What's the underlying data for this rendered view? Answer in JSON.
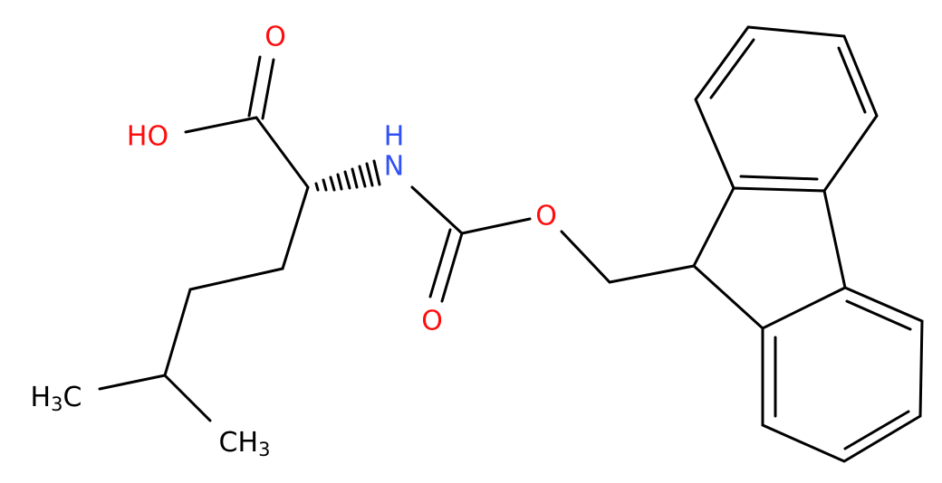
{
  "atoms": [
    {
      "label": "O"
    },
    {
      "label": "HO"
    },
    {
      "label": "N"
    },
    {
      "label": "H"
    },
    {
      "label": "O"
    },
    {
      "label": "O"
    },
    {
      "label": "H",
      "sub": "3",
      "tail": "C"
    },
    {
      "label": "CH",
      "sub": "3"
    }
  ]
}
